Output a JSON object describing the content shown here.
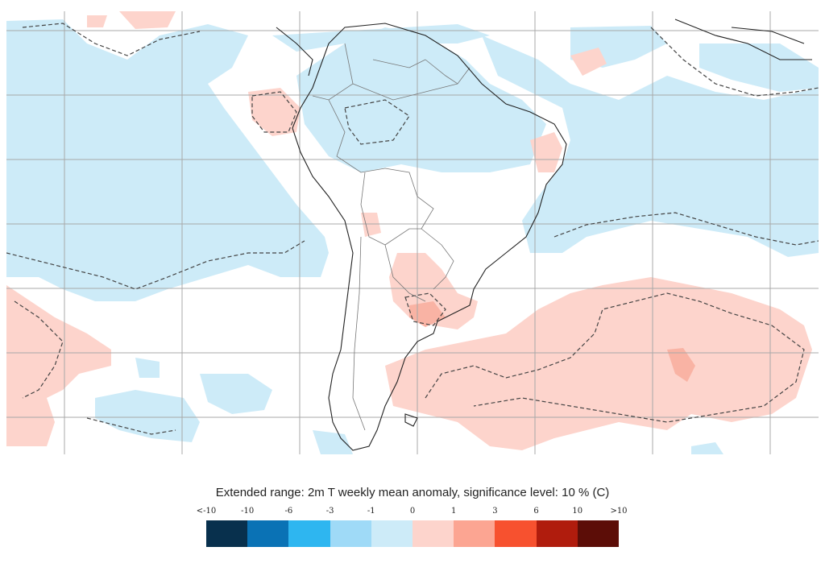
{
  "legend": {
    "title": "Extended range: 2m T weekly mean anomaly, significance level: 10 % (C)",
    "tick_labels": [
      "<-10",
      "-10",
      "-6",
      "-3",
      "-1",
      "0",
      "1",
      "3",
      "6",
      "10",
      ">10"
    ],
    "bins": [
      {
        "range": "<-10 to -10",
        "color": "#08304d"
      },
      {
        "range": "-10 to -6",
        "color": "#0a72b5"
      },
      {
        "range": "-6 to -3",
        "color": "#2eb6f0"
      },
      {
        "range": "-3 to -1",
        "color": "#9fdaf7"
      },
      {
        "range": "-1 to 0",
        "color": "#cdebf8"
      },
      {
        "range": "0 to 1",
        "color": "#fdd4cc"
      },
      {
        "range": "1 to 3",
        "color": "#fca592"
      },
      {
        "range": "3 to 6",
        "color": "#f7512f"
      },
      {
        "range": "6 to 10",
        "color": "#b01c0d"
      },
      {
        "range": "10 to >10",
        "color": "#5c0d07"
      }
    ]
  },
  "map": {
    "region": "South America and surrounding oceans",
    "field": "2m temperature weekly mean anomaly",
    "significance_contour_style": "dashed",
    "grid": true,
    "colors": {
      "cold_anomaly": "#cdebf8",
      "warm_anomaly": "#fdd4cc",
      "warm_strong": "#fca592",
      "gridline": "#a8a8a8",
      "coastline": "#222222",
      "border": "#777777"
    }
  }
}
